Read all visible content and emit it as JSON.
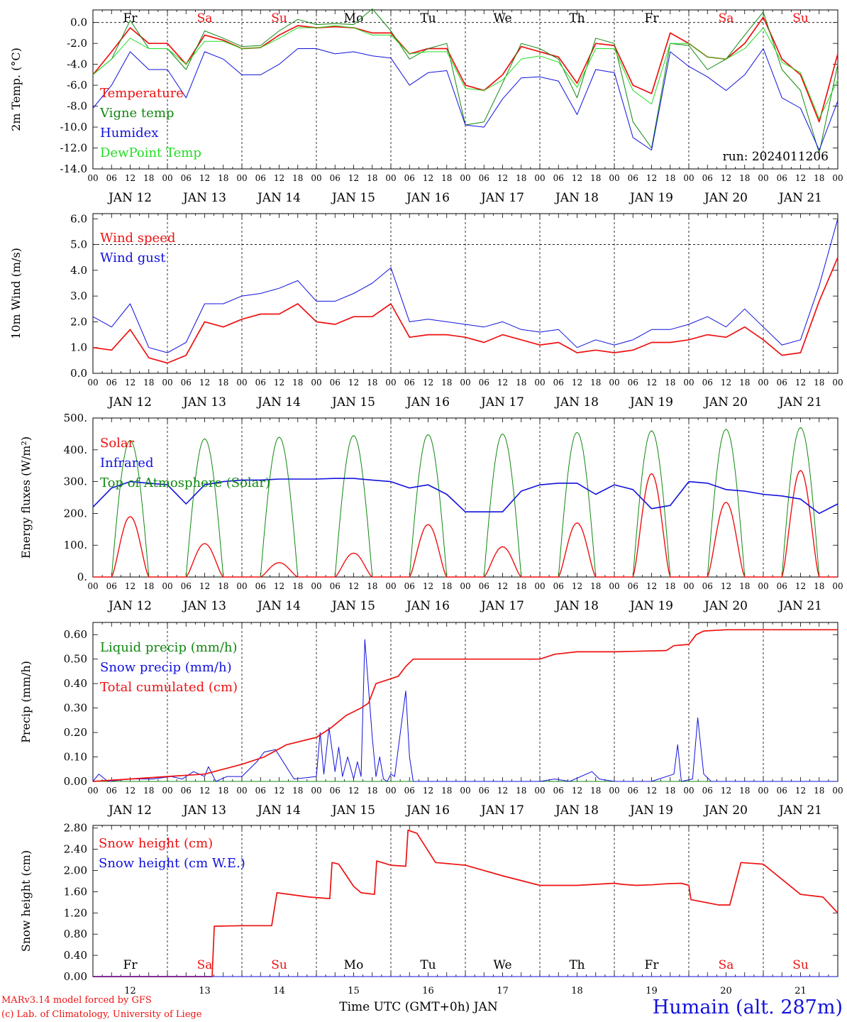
{
  "footer": {
    "model_credit": "MARv3.14 model forced by GFS",
    "lab_credit": "(c) Lab. of Climatology, University of Liege",
    "time_axis_label": "Time UTC (GMT+0h) JAN",
    "station": "Humain (alt. 287m)"
  },
  "time_axis": {
    "days": [
      "JAN 12",
      "JAN 13",
      "JAN 14",
      "JAN 15",
      "JAN 16",
      "JAN 17",
      "JAN 18",
      "JAN 19",
      "JAN 20",
      "JAN 21"
    ],
    "hour_ticks": [
      "00",
      "06",
      "12",
      "18"
    ],
    "end_tick": "00",
    "weekdays": [
      "Fr",
      "Sa",
      "Su",
      "Mo",
      "Tu",
      "We",
      "Th",
      "Fr",
      "Sa",
      "Su"
    ],
    "day_numbers": [
      "12",
      "13",
      "14",
      "15",
      "16",
      "17",
      "18",
      "19",
      "20",
      "21"
    ]
  },
  "colors": {
    "red": "#ee1111",
    "green": "#118811",
    "blue": "#1111dd",
    "lightgreen": "#22dd22",
    "weekend": "#ee1111",
    "weekday": "#000000"
  },
  "chart_data": [
    {
      "id": "temp",
      "type": "line",
      "ylabel": "2m Temp. (°C)",
      "ylim": [
        -14,
        1.2
      ],
      "yticks": [
        "0.0",
        "-2.0",
        "-4.0",
        "-6.0",
        "-8.0",
        "-10.0",
        "-12.0",
        "-14.0"
      ],
      "ytick_values": [
        0,
        -2,
        -4,
        -6,
        -8,
        -10,
        -12,
        -14
      ],
      "ref_line": 0,
      "annotation": "run: 2024011206",
      "x_days": [
        0,
        0.25,
        0.5,
        0.75,
        1,
        1.25,
        1.5,
        1.75,
        2,
        2.25,
        2.5,
        2.75,
        3,
        3.25,
        3.5,
        3.75,
        4,
        4.25,
        4.5,
        4.75,
        5,
        5.25,
        5.5,
        5.75,
        6,
        6.25,
        6.5,
        6.75,
        7,
        7.25,
        7.5,
        7.75,
        8,
        8.25,
        8.5,
        8.75,
        9,
        9.25,
        9.5,
        9.75,
        10
      ],
      "series": [
        {
          "name": "Temperature",
          "color": "red",
          "values": [
            -5,
            -2.8,
            -0.5,
            -2,
            -2,
            -4,
            -1.2,
            -1.7,
            -2.5,
            -2.4,
            -1.2,
            -0.3,
            -0.5,
            -0.4,
            -0.5,
            -1,
            -1,
            -3,
            -2.5,
            -2.5,
            -6,
            -6.5,
            -5,
            -2.3,
            -2.8,
            -3.3,
            -5.8,
            -2,
            -2.2,
            -6,
            -6.8,
            -1,
            -2,
            -3.3,
            -3.5,
            -2,
            0.5,
            -3.5,
            -5,
            -9.5,
            -3
          ]
        },
        {
          "name": "Vigne temp",
          "color": "green",
          "values": [
            -5,
            -3.5,
            0.2,
            -2.5,
            -2.5,
            -4.5,
            -0.8,
            -1.5,
            -2.3,
            -2.2,
            -0.8,
            0.3,
            -0.2,
            -0.1,
            -0.2,
            1.3,
            -0.8,
            -3.5,
            -2.5,
            -2,
            -9.8,
            -9.5,
            -5.8,
            -2,
            -2.5,
            -3.5,
            -7.2,
            -1.5,
            -2,
            -9.5,
            -12,
            -2,
            -2.2,
            -4.5,
            -3.5,
            -1.2,
            1,
            -4.5,
            -6.5,
            -12.5,
            -4
          ]
        },
        {
          "name": "Humidex",
          "color": "blue",
          "values": [
            -8.2,
            -6,
            -2.8,
            -4.5,
            -4.5,
            -7.2,
            -2.8,
            -3.5,
            -5,
            -5,
            -4,
            -2.5,
            -2.5,
            -3,
            -2.8,
            -3.2,
            -3.4,
            -6,
            -4.8,
            -4.6,
            -9.8,
            -10,
            -7.3,
            -5.3,
            -5.2,
            -5.6,
            -8.8,
            -4.5,
            -4.8,
            -11,
            -12.2,
            -2.8,
            -4.2,
            -5.2,
            -6.5,
            -5,
            -2.5,
            -7.2,
            -8.2,
            -12.2,
            -7.5
          ]
        },
        {
          "name": "DewPoint Temp",
          "color": "lightgreen",
          "values": [
            -5,
            -3.5,
            -1.5,
            -2.5,
            -2.5,
            -4,
            -1.8,
            -1.8,
            -2.5,
            -2.4,
            -1.5,
            -0.5,
            -0.5,
            -0.3,
            -0.5,
            -1.2,
            -1.2,
            -3,
            -2.8,
            -2.8,
            -6.3,
            -6.5,
            -5.5,
            -3.5,
            -3.2,
            -3.8,
            -6.2,
            -2.5,
            -2.5,
            -6.5,
            -7.8,
            -2,
            -2,
            -3.3,
            -3.5,
            -2.5,
            -0.5,
            -3.8,
            -4.8,
            -9.2,
            -5.5
          ]
        }
      ]
    },
    {
      "id": "wind",
      "type": "line",
      "ylabel": "10m Wind (m/s)",
      "ylim": [
        0,
        6.2
      ],
      "yticks": [
        "0.0",
        "1.0",
        "2.0",
        "3.0",
        "4.0",
        "5.0",
        "6.0"
      ],
      "ytick_values": [
        0,
        1,
        2,
        3,
        4,
        5,
        6
      ],
      "ref_line": 5,
      "x_days": [
        0,
        0.25,
        0.5,
        0.75,
        1,
        1.25,
        1.5,
        1.75,
        2,
        2.25,
        2.5,
        2.75,
        3,
        3.25,
        3.5,
        3.75,
        4,
        4.25,
        4.5,
        4.75,
        5,
        5.25,
        5.5,
        5.75,
        6,
        6.25,
        6.5,
        6.75,
        7,
        7.25,
        7.5,
        7.75,
        8,
        8.25,
        8.5,
        8.75,
        9,
        9.25,
        9.5,
        9.75,
        10
      ],
      "series": [
        {
          "name": "Wind speed",
          "color": "red",
          "values": [
            1,
            0.9,
            1.7,
            0.6,
            0.4,
            0.7,
            2.0,
            1.8,
            2.1,
            2.3,
            2.3,
            2.7,
            2.0,
            1.9,
            2.2,
            2.2,
            2.7,
            1.4,
            1.5,
            1.5,
            1.4,
            1.2,
            1.5,
            1.3,
            1.1,
            1.2,
            0.8,
            0.9,
            0.8,
            0.9,
            1.2,
            1.2,
            1.3,
            1.5,
            1.4,
            1.8,
            1.3,
            0.7,
            0.8,
            2.8,
            4.5
          ]
        },
        {
          "name": "Wind gust",
          "color": "blue",
          "values": [
            2.2,
            1.8,
            2.7,
            1.0,
            0.8,
            1.2,
            2.7,
            2.7,
            3.0,
            3.1,
            3.3,
            3.6,
            2.8,
            2.8,
            3.1,
            3.5,
            4.1,
            2.0,
            2.1,
            2.0,
            1.9,
            1.8,
            2.0,
            1.7,
            1.6,
            1.7,
            1.0,
            1.3,
            1.1,
            1.3,
            1.7,
            1.7,
            1.9,
            2.2,
            1.8,
            2.5,
            1.8,
            1.1,
            1.3,
            3.4,
            6.0
          ]
        }
      ]
    },
    {
      "id": "energy",
      "type": "line",
      "ylabel": "Energy fluxes (W/m²)",
      "ylim": [
        0,
        500
      ],
      "yticks": [
        "0.",
        "100.",
        "200.",
        "300.",
        "400.",
        "500."
      ],
      "ytick_values": [
        0,
        100,
        200,
        300,
        400,
        500
      ],
      "solar_peaks": [
        190,
        105,
        45,
        75,
        165,
        95,
        170,
        325,
        235,
        335
      ],
      "toa_peaks": [
        430,
        435,
        440,
        445,
        448,
        450,
        455,
        460,
        465,
        470
      ],
      "infrared_x": [
        0,
        0.25,
        0.5,
        0.75,
        1,
        1.25,
        1.5,
        1.75,
        2,
        2.25,
        2.5,
        2.75,
        3,
        3.25,
        3.5,
        3.75,
        4,
        4.25,
        4.5,
        4.75,
        5,
        5.25,
        5.5,
        5.75,
        6,
        6.25,
        6.5,
        6.75,
        7,
        7.25,
        7.5,
        7.75,
        8,
        8.25,
        8.5,
        8.75,
        9,
        9.25,
        9.5,
        9.75,
        10
      ],
      "series": [
        {
          "name": "Solar",
          "color": "red"
        },
        {
          "name": "Infrared",
          "color": "blue",
          "values": [
            220,
            280,
            300,
            295,
            290,
            230,
            290,
            300,
            305,
            305,
            308,
            308,
            308,
            310,
            310,
            305,
            300,
            280,
            290,
            260,
            205,
            205,
            205,
            270,
            290,
            295,
            295,
            260,
            290,
            275,
            215,
            225,
            300,
            295,
            275,
            270,
            260,
            255,
            245,
            200,
            230
          ]
        },
        {
          "name": "Top of Atmosphere (Solar)",
          "color": "green"
        }
      ]
    },
    {
      "id": "precip",
      "type": "line",
      "ylabel": "Precip (mm/h)",
      "ylim": [
        0,
        0.65
      ],
      "yticks": [
        "0.00",
        "0.10",
        "0.20",
        "0.30",
        "0.40",
        "0.50",
        "0.60"
      ],
      "ytick_values": [
        0,
        0.1,
        0.2,
        0.3,
        0.4,
        0.5,
        0.6
      ],
      "series": [
        {
          "name": "Liquid precip (mm/h)",
          "color": "green",
          "x_days": [
            0,
            10
          ],
          "values": [
            0,
            0
          ]
        },
        {
          "name": "Snow precip (mm/h)",
          "color": "blue",
          "x_days": [
            0,
            0.08,
            0.2,
            0.5,
            0.8,
            1.05,
            1.2,
            1.35,
            1.5,
            1.55,
            1.65,
            1.8,
            2.0,
            2.2,
            2.3,
            2.45,
            2.7,
            3.0,
            3.05,
            3.1,
            3.17,
            3.25,
            3.3,
            3.35,
            3.42,
            3.5,
            3.55,
            3.6,
            3.65,
            3.75,
            3.8,
            3.85,
            3.9,
            3.95,
            4.0,
            4.05,
            4.2,
            4.25,
            4.3,
            4.35,
            4.4,
            4.45,
            5.0,
            6.0,
            6.2,
            6.4,
            6.7,
            6.8,
            7.0,
            7.5,
            7.8,
            7.85,
            7.9,
            8.05,
            8.12,
            8.2,
            8.3,
            8.5,
            9.0,
            10.0
          ],
          "values": [
            0,
            0.03,
            0,
            0.01,
            0.01,
            0.02,
            0.01,
            0.04,
            0.02,
            0.06,
            0,
            0.02,
            0.02,
            0.08,
            0.12,
            0.13,
            0.01,
            0.02,
            0.2,
            0.03,
            0.22,
            0.04,
            0.14,
            0.02,
            0.1,
            0.01,
            0.08,
            0.02,
            0.58,
            0.18,
            0.02,
            0.1,
            0.01,
            0,
            0.03,
            0.02,
            0.37,
            0.1,
            0,
            0,
            0,
            0,
            0,
            0,
            0.01,
            0,
            0.04,
            0.01,
            0,
            0,
            0.03,
            0.15,
            0,
            0.01,
            0.26,
            0.03,
            0,
            0,
            0,
            0
          ]
        },
        {
          "name": "Total cumulated (cm)",
          "color": "red",
          "x_days": [
            0,
            0.5,
            1.0,
            1.5,
            2.0,
            2.3,
            2.6,
            3.0,
            3.2,
            3.4,
            3.6,
            3.7,
            3.8,
            4.0,
            4.1,
            4.2,
            4.3,
            4.5,
            5.0,
            5.5,
            6.0,
            6.2,
            6.5,
            7.0,
            7.7,
            7.8,
            8.0,
            8.1,
            8.2,
            8.5,
            9.0,
            10.0
          ],
          "values": [
            0,
            0.01,
            0.02,
            0.03,
            0.07,
            0.1,
            0.15,
            0.18,
            0.22,
            0.27,
            0.3,
            0.32,
            0.4,
            0.42,
            0.43,
            0.47,
            0.5,
            0.5,
            0.5,
            0.5,
            0.5,
            0.52,
            0.53,
            0.53,
            0.535,
            0.555,
            0.56,
            0.6,
            0.615,
            0.62,
            0.62,
            0.62
          ]
        }
      ]
    },
    {
      "id": "snow",
      "type": "line",
      "ylabel": "Snow height (cm)",
      "ylim": [
        0,
        2.85
      ],
      "yticks": [
        "0.00",
        "0.40",
        "0.80",
        "1.20",
        "1.60",
        "2.00",
        "2.40",
        "2.80"
      ],
      "ytick_values": [
        0,
        0.4,
        0.8,
        1.2,
        1.6,
        2.0,
        2.4,
        2.8
      ],
      "series": [
        {
          "name": "Snow height (cm)",
          "color": "red",
          "x_days": [
            0,
            1.6,
            1.63,
            2.0,
            2.4,
            2.47,
            2.9,
            3.18,
            3.21,
            3.3,
            3.5,
            3.6,
            3.78,
            3.81,
            4.0,
            4.2,
            4.23,
            4.35,
            4.6,
            5.0,
            5.5,
            6.0,
            6.5,
            7.0,
            7.1,
            7.3,
            7.5,
            7.7,
            7.9,
            8.0,
            8.03,
            8.4,
            8.55,
            8.7,
            9.0,
            9.5,
            9.8,
            10.0
          ],
          "values": [
            0,
            0,
            0.95,
            0.96,
            0.96,
            1.58,
            1.5,
            1.47,
            2.15,
            2.12,
            1.7,
            1.58,
            1.55,
            2.18,
            2.1,
            2.08,
            2.76,
            2.7,
            2.15,
            2.1,
            1.9,
            1.72,
            1.72,
            1.76,
            1.74,
            1.72,
            1.73,
            1.75,
            1.76,
            1.72,
            1.45,
            1.35,
            1.35,
            2.15,
            2.12,
            1.55,
            1.5,
            1.2
          ]
        },
        {
          "name": "Snow height (cm W.E.)",
          "color": "blue",
          "x_days": [
            0,
            10
          ],
          "values": [
            0,
            0
          ]
        }
      ]
    }
  ]
}
